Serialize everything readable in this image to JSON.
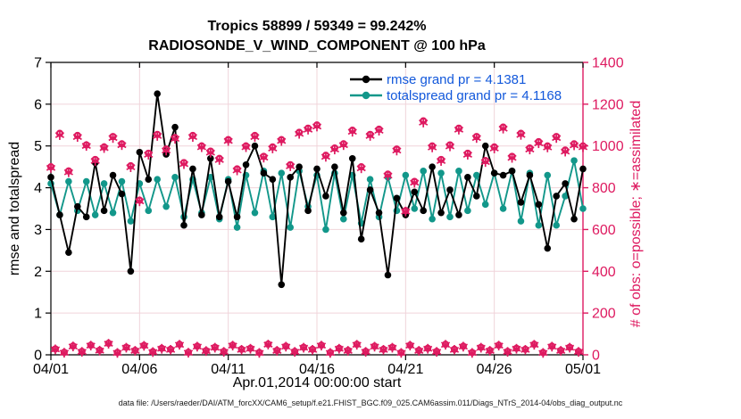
{
  "figure": {
    "title_line1": "Tropics 58899 / 59349 = 99.242%",
    "title_line2": "RADIOSONDE_V_WIND_COMPONENT @ 100 hPa",
    "xlabel": "Apr.01,2014 00:00:00 start",
    "ylabel_left": "rmse and totalspread",
    "ylabel_right": "# of obs: o=possible; ∗=assimilated",
    "footer": "data file: /Users/raeder/DAI/ATM_forcXX/CAM6_setup/f.e21.FHIST_BGC.f09_025.CAM6assim.011/Diags_NTrS_2014-04/obs_diag_output.nc",
    "colors": {
      "rmse": "#000000",
      "totalspread": "#12978A",
      "obs_counts": "#DE1A60",
      "legend_text": "#1258DB",
      "grid": "#F0D4DA",
      "background": "#ffffff"
    }
  },
  "chart_data": {
    "type": "line",
    "title": "Tropics 58899 / 59349 = 99.242%",
    "subtitle": "RADIOSONDE_V_WIND_COMPONENT @ 100 hPa",
    "xlabel": "Apr.01,2014 00:00:00 start",
    "x_range_days": [
      0,
      30
    ],
    "x_ticks": [
      {
        "day": 0,
        "label": "04/01"
      },
      {
        "day": 5,
        "label": "04/06"
      },
      {
        "day": 10,
        "label": "04/11"
      },
      {
        "day": 15,
        "label": "04/16"
      },
      {
        "day": 20,
        "label": "04/21"
      },
      {
        "day": 25,
        "label": "04/26"
      },
      {
        "day": 30,
        "label": "05/01"
      }
    ],
    "left_axis": {
      "label": "rmse and totalspread",
      "range": [
        0,
        7
      ],
      "tick_step": 1,
      "color": "#000000"
    },
    "right_axis": {
      "label": "# of obs: o=possible; ∗=assimilated",
      "range": [
        0,
        1400
      ],
      "tick_step": 200,
      "color": "#DE1A60"
    },
    "grid": true,
    "legend": {
      "position": "top-right",
      "text_color": "#1258DB",
      "entries": [
        {
          "series": "rmse",
          "label": "rmse grand pr = 4.1381",
          "color": "#000000"
        },
        {
          "series": "totalspread",
          "label": "totalspread grand pr = 4.1168",
          "color": "#12978A"
        }
      ]
    },
    "grand_pr": {
      "rmse": 4.1381,
      "totalspread": 4.1168
    },
    "series": [
      {
        "id": "rmse",
        "axis": "left",
        "color": "#000000",
        "marker": "dot",
        "line": true,
        "days_start": 0,
        "days_step": 0.5,
        "values": [
          4.25,
          3.35,
          2.45,
          3.55,
          3.3,
          4.6,
          3.45,
          4.3,
          3.85,
          2.0,
          4.85,
          4.2,
          6.25,
          4.8,
          5.45,
          3.1,
          4.45,
          3.35,
          4.7,
          3.3,
          4.15,
          3.3,
          4.55,
          5.0,
          4.35,
          4.2,
          1.68,
          4.25,
          4.5,
          3.45,
          4.45,
          3.8,
          4.5,
          3.4,
          4.7,
          2.77,
          3.95,
          3.4,
          1.91,
          3.75,
          3.35,
          3.9,
          3.45,
          4.5,
          3.4,
          3.95,
          3.35,
          4.25,
          3.8,
          5.0,
          4.35,
          4.3,
          4.4,
          3.65,
          4.3,
          3.6,
          2.55,
          3.8,
          4.1,
          3.25,
          4.45
        ]
      },
      {
        "id": "totalspread",
        "axis": "left",
        "color": "#12978A",
        "marker": "dot",
        "line": true,
        "days_start": 0,
        "days_step": 0.5,
        "values": [
          4.1,
          3.35,
          4.15,
          3.45,
          4.15,
          3.35,
          4.1,
          3.4,
          4.15,
          3.2,
          4.1,
          3.45,
          4.2,
          3.55,
          4.25,
          3.3,
          4.2,
          3.4,
          4.25,
          3.25,
          4.2,
          3.05,
          4.3,
          3.4,
          4.4,
          3.3,
          4.35,
          3.05,
          4.4,
          3.55,
          4.3,
          3.0,
          4.35,
          3.25,
          4.3,
          3.15,
          4.2,
          3.3,
          4.25,
          3.45,
          4.3,
          3.5,
          4.4,
          3.25,
          4.35,
          3.3,
          4.4,
          3.45,
          4.3,
          3.6,
          4.35,
          3.5,
          4.4,
          3.2,
          4.35,
          3.1,
          4.3,
          3.1,
          3.8,
          4.65,
          3.5
        ]
      },
      {
        "id": "possible-obs-synoptic",
        "axis": "right",
        "color": "#DE1A60",
        "marker": "circle-open",
        "line": false,
        "days_start": 0,
        "days_step": 0.5,
        "values": [
          900,
          1060,
          880,
          1050,
          1005,
          935,
          995,
          1045,
          1010,
          905,
          740,
          965,
          1055,
          985,
          1040,
          920,
          1050,
          1000,
          975,
          940,
          1030,
          890,
          1000,
          1050,
          950,
          995,
          1030,
          910,
          1065,
          1085,
          1100,
          955,
          990,
          1010,
          1075,
          900,
          1055,
          1080,
          865,
          985,
          690,
          830,
          1120,
          1000,
          935,
          1005,
          1085,
          965,
          1045,
          930,
          995,
          1090,
          950,
          1060,
          990,
          1020,
          1000,
          1045,
          980,
          1010,
          1000
        ]
      },
      {
        "id": "assimilated-obs-synoptic",
        "axis": "right",
        "color": "#DE1A60",
        "marker": "asterisk",
        "line": false,
        "days_start": 0,
        "days_step": 0.5,
        "values": [
          895,
          1052,
          874,
          1043,
          1000,
          928,
          990,
          1038,
          1004,
          898,
          735,
          958,
          1048,
          978,
          1034,
          913,
          1043,
          994,
          968,
          933,
          1024,
          883,
          994,
          1043,
          944,
          988,
          1024,
          903,
          1058,
          1078,
          1093,
          948,
          983,
          1004,
          1068,
          893,
          1048,
          1073,
          858,
          978,
          686,
          824,
          1112,
          993,
          928,
          998,
          1078,
          958,
          1038,
          923,
          988,
          1083,
          943,
          1053,
          983,
          1013,
          993,
          1038,
          973,
          1003,
          994
        ]
      },
      {
        "id": "possible-obs-offsynoptic",
        "axis": "right",
        "color": "#DE1A60",
        "marker": "circle-open",
        "line": false,
        "days_start": 0.25,
        "days_step": 0.5,
        "values": [
          28,
          12,
          42,
          16,
          46,
          22,
          55,
          11,
          36,
          21,
          45,
          15,
          31,
          26,
          50,
          12,
          41,
          20,
          36,
          16,
          46,
          26,
          31,
          11,
          51,
          21,
          41,
          16,
          36,
          26,
          46,
          11,
          31,
          21,
          50,
          16,
          41,
          26,
          36,
          11,
          46,
          21,
          31,
          16,
          50,
          26,
          41,
          11,
          36,
          21,
          46,
          16,
          31,
          26,
          50,
          11,
          41,
          21,
          36,
          16
        ]
      },
      {
        "id": "assimilated-obs-offsynoptic",
        "axis": "right",
        "color": "#DE1A60",
        "marker": "asterisk",
        "line": false,
        "days_start": 0.25,
        "days_step": 0.5,
        "values": [
          26,
          10,
          40,
          14,
          44,
          20,
          53,
          9,
          34,
          19,
          43,
          13,
          29,
          24,
          48,
          10,
          39,
          18,
          34,
          14,
          44,
          24,
          29,
          9,
          49,
          19,
          39,
          14,
          34,
          24,
          44,
          9,
          29,
          19,
          48,
          14,
          39,
          24,
          34,
          9,
          44,
          19,
          29,
          14,
          48,
          24,
          39,
          9,
          34,
          19,
          44,
          14,
          29,
          24,
          48,
          9,
          39,
          19,
          34,
          14
        ]
      }
    ]
  }
}
